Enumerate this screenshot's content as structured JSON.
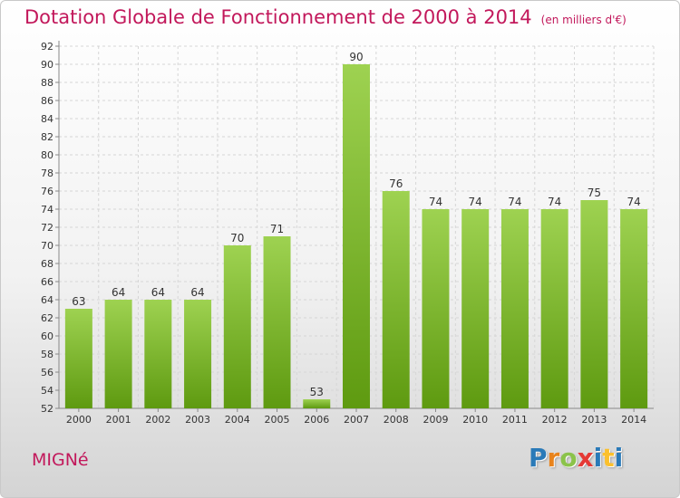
{
  "title": "Dotation Globale de Fonctionnement de 2000 à 2014",
  "subtitle": "(en milliers d'€)",
  "place": "MIGNé",
  "brand": {
    "letters": [
      "P",
      "r",
      "o",
      "x",
      "i",
      "t",
      "i"
    ],
    "colors": [
      "#2a7ab8",
      "#e8831c",
      "#8bc34a",
      "#e53935",
      "#2a7ab8",
      "#fbc02d",
      "#2a7ab8"
    ]
  },
  "colors": {
    "bar_top": "#9ed251",
    "bar_bottom": "#5e9a10",
    "accent": "#c2185b"
  },
  "chart_data": {
    "type": "bar",
    "categories": [
      "2000",
      "2001",
      "2002",
      "2003",
      "2004",
      "2005",
      "2006",
      "2007",
      "2008",
      "2009",
      "2010",
      "2011",
      "2012",
      "2013",
      "2014"
    ],
    "values": [
      63,
      64,
      64,
      64,
      70,
      71,
      53,
      90,
      76,
      74,
      74,
      74,
      74,
      75,
      74
    ],
    "title": "Dotation Globale de Fonctionnement de 2000 à 2014",
    "xlabel": "",
    "ylabel": "",
    "ylim": [
      52,
      92
    ],
    "yticks": [
      52,
      54,
      56,
      58,
      60,
      62,
      64,
      66,
      68,
      70,
      72,
      74,
      76,
      78,
      80,
      82,
      84,
      86,
      88,
      90,
      92
    ],
    "grid": true,
    "legend": "none"
  }
}
